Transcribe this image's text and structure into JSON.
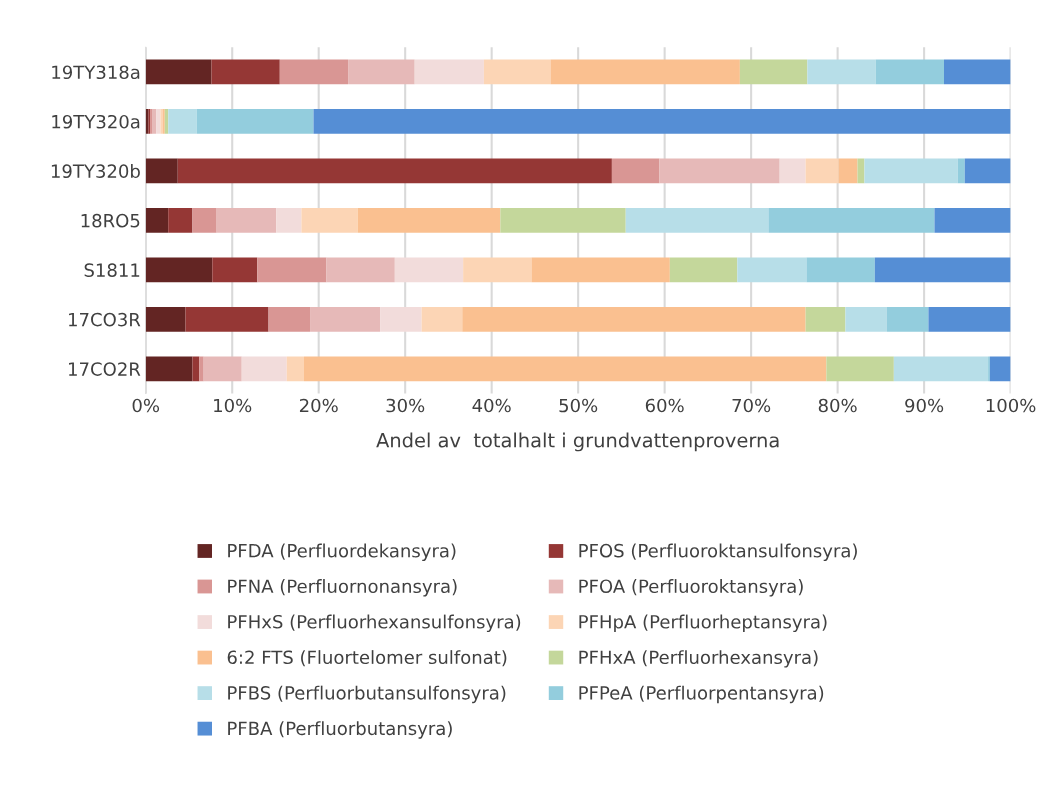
{
  "chart_data": {
    "type": "bar",
    "orientation": "horizontal",
    "stacked": true,
    "xlabel": "Andel av  totalhalt i grundvattenproverna",
    "categories": [
      "19TY318a",
      "19TY320a",
      "19TY320b",
      "18RO5",
      "S1811",
      "17CO3R",
      "17CO2R"
    ],
    "xlim": [
      0,
      100
    ],
    "xticks": [
      {
        "value": 0,
        "label": "0%"
      },
      {
        "value": 10,
        "label": "10%"
      },
      {
        "value": 20,
        "label": "20%"
      },
      {
        "value": 30,
        "label": "30%"
      },
      {
        "value": 40,
        "label": "40%"
      },
      {
        "value": 50,
        "label": "50%"
      },
      {
        "value": 60,
        "label": "60%"
      },
      {
        "value": 70,
        "label": "70%"
      },
      {
        "value": 80,
        "label": "80%"
      },
      {
        "value": 90,
        "label": "90%"
      },
      {
        "value": 100,
        "label": "100%"
      }
    ],
    "grid": "x",
    "legend": "bottom",
    "series": [
      {
        "name": "PFDA (Perfluordekansyra)",
        "color": "#632523",
        "values": [
          7.6,
          0.3,
          3.7,
          2.6,
          7.7,
          4.6,
          5.4
        ]
      },
      {
        "name": "PFOS (Perfluoroktansulfonsyra)",
        "color": "#953735",
        "values": [
          7.9,
          0.2,
          50.2,
          2.8,
          5.2,
          9.6,
          0.8
        ]
      },
      {
        "name": "PFNA (Perfluornonansyra)",
        "color": "#d99694",
        "values": [
          7.9,
          0.3,
          5.5,
          2.8,
          8.0,
          4.8,
          0.5
        ]
      },
      {
        "name": "PFOA (Perfluoroktansyra)",
        "color": "#e6b9b8",
        "values": [
          7.7,
          0.4,
          13.9,
          6.9,
          7.9,
          8.1,
          4.4
        ]
      },
      {
        "name": "PFHxS (Perfluorhexansulfonsyra)",
        "color": "#f2dcdb",
        "values": [
          8.0,
          0.5,
          3.0,
          2.9,
          7.9,
          4.8,
          5.2
        ]
      },
      {
        "name": "PFHpA (Perfluorheptansyra)",
        "color": "#fcd5b5",
        "values": [
          7.7,
          0.3,
          3.8,
          6.5,
          7.9,
          4.7,
          2.0
        ]
      },
      {
        "name": "6:2 FTS (Fluortelomer sulfonat)",
        "color": "#fac090",
        "values": [
          21.9,
          0.2,
          2.2,
          16.5,
          16.0,
          39.7,
          60.4
        ]
      },
      {
        "name": "PFHxA (Perfluorhexansyra)",
        "color": "#c4d79b",
        "values": [
          7.8,
          0.4,
          0.8,
          14.5,
          7.8,
          4.6,
          7.8
        ]
      },
      {
        "name": "PFBS (Perfluorbutansulfonsyra)",
        "color": "#b7dee8",
        "values": [
          7.9,
          3.3,
          10.8,
          16.5,
          8.0,
          4.8,
          10.9
        ]
      },
      {
        "name": "PFPeA (Perfluorpentansyra)",
        "color": "#93cddd",
        "values": [
          7.9,
          13.5,
          0.8,
          19.2,
          7.9,
          4.8,
          0.2
        ]
      },
      {
        "name": "PFBA (Perfluorbutansyra)",
        "color": "#558ed5",
        "values": [
          7.7,
          80.6,
          5.3,
          8.8,
          15.7,
          9.5,
          2.4
        ]
      }
    ]
  }
}
